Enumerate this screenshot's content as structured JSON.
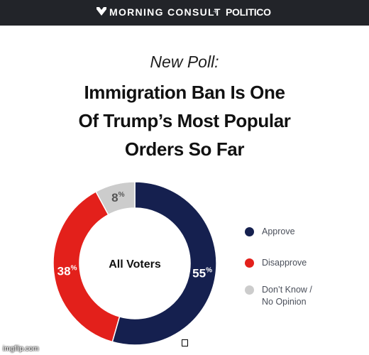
{
  "header": {
    "brand_one": "MORNING CONSULT",
    "plus": "+",
    "brand_two": "POLITICO",
    "logo_icon": "morning-consult-logo-icon"
  },
  "kicker": "New Poll:",
  "headline": [
    "Immigration Ban Is One",
    "Of Trump’s Most Popular",
    "Orders So Far"
  ],
  "chart_data": {
    "type": "pie",
    "variant": "donut",
    "center_label": "All Voters",
    "categories": [
      "Approve",
      "Disapprove",
      "Don’t Know / No Opinion"
    ],
    "values": [
      55,
      38,
      8
    ],
    "unit": "%",
    "colors": [
      "#15204f",
      "#e3201b",
      "#cccccc"
    ],
    "label_colors": [
      "#ffffff",
      "#ffffff",
      "#555555"
    ],
    "legend_position": "right",
    "legend_lines": [
      [
        "Approve"
      ],
      [
        "Disapprove"
      ],
      [
        "Don’t Know /",
        "No Opinion"
      ]
    ]
  },
  "watermark": "imgflip.com"
}
